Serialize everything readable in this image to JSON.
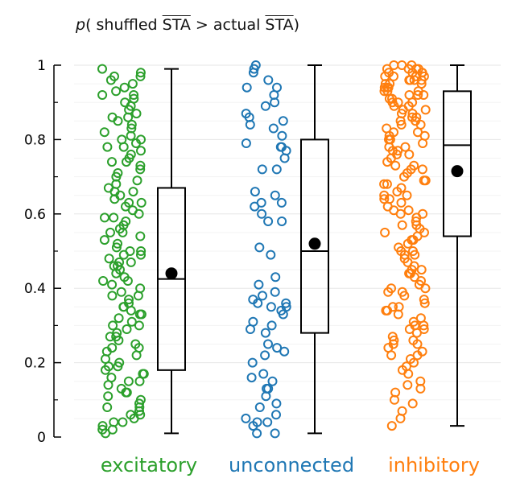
{
  "chart_data": {
    "type": "scatter",
    "title": {
      "p": "p",
      "open": "( shuffled ",
      "sta1": "STA",
      "gt": " > ",
      "mid": " actual ",
      "sta2": "STA",
      "close": ")"
    },
    "ylim": [
      0,
      1
    ],
    "yticks": [
      0,
      0.2,
      0.4,
      0.6,
      0.8,
      1
    ],
    "ytick_labels": [
      "0",
      "0.2",
      "0.4",
      "0.6",
      "0.8",
      "1"
    ],
    "grid": true,
    "categories": [
      {
        "name": "excitatory",
        "color": "#2ca02c",
        "box": {
          "min": 0.01,
          "q1": 0.18,
          "median": 0.425,
          "q3": 0.67,
          "max": 0.99,
          "mean": 0.44
        },
        "points": [
          0.99,
          0.98,
          0.97,
          0.96,
          0.95,
          0.94,
          0.93,
          0.92,
          0.91,
          0.9,
          0.89,
          0.88,
          0.87,
          0.86,
          0.85,
          0.84,
          0.83,
          0.82,
          0.81,
          0.8,
          0.8,
          0.79,
          0.78,
          0.78,
          0.77,
          0.76,
          0.75,
          0.74,
          0.73,
          0.72,
          0.71,
          0.7,
          0.69,
          0.68,
          0.67,
          0.66,
          0.65,
          0.64,
          0.63,
          0.62,
          0.61,
          0.6,
          0.59,
          0.59,
          0.58,
          0.57,
          0.56,
          0.55,
          0.54,
          0.53,
          0.52,
          0.51,
          0.5,
          0.5,
          0.49,
          0.48,
          0.47,
          0.46,
          0.46,
          0.45,
          0.44,
          0.43,
          0.42,
          0.41,
          0.4,
          0.39,
          0.38,
          0.37,
          0.36,
          0.35,
          0.35,
          0.34,
          0.33,
          0.32,
          0.31,
          0.3,
          0.29,
          0.28,
          0.27,
          0.26,
          0.25,
          0.24,
          0.23,
          0.22,
          0.21,
          0.2,
          0.19,
          0.18,
          0.17,
          0.16,
          0.15,
          0.14,
          0.13,
          0.12,
          0.11,
          0.1,
          0.09,
          0.08,
          0.07,
          0.06,
          0.05,
          0.04,
          0.03,
          0.02,
          0.01,
          0.92,
          0.86,
          0.74,
          0.66,
          0.55,
          0.47,
          0.38,
          0.3,
          0.24,
          0.19,
          0.15,
          0.08,
          0.04,
          0.02,
          0.97,
          0.63,
          0.49,
          0.42,
          0.33,
          0.27,
          0.17,
          0.12,
          0.06
        ]
      },
      {
        "name": "unconnected",
        "color": "#1f77b4",
        "box": {
          "min": 0.01,
          "q1": 0.28,
          "median": 0.5,
          "q3": 0.8,
          "max": 1.0,
          "mean": 0.52
        },
        "points": [
          1.0,
          0.99,
          0.98,
          0.96,
          0.94,
          0.94,
          0.92,
          0.9,
          0.89,
          0.87,
          0.86,
          0.85,
          0.84,
          0.83,
          0.81,
          0.79,
          0.78,
          0.78,
          0.77,
          0.75,
          0.72,
          0.72,
          0.66,
          0.65,
          0.63,
          0.63,
          0.62,
          0.6,
          0.58,
          0.58,
          0.51,
          0.49,
          0.43,
          0.41,
          0.39,
          0.38,
          0.37,
          0.36,
          0.36,
          0.35,
          0.35,
          0.34,
          0.33,
          0.31,
          0.3,
          0.29,
          0.28,
          0.25,
          0.24,
          0.23,
          0.22,
          0.2,
          0.17,
          0.16,
          0.15,
          0.13,
          0.13,
          0.11,
          0.09,
          0.08,
          0.06,
          0.05,
          0.04,
          0.04,
          0.03,
          0.01,
          0.01
        ]
      },
      {
        "name": "inhibitory",
        "color": "#ff7f0e",
        "box": {
          "min": 0.03,
          "q1": 0.54,
          "median": 0.785,
          "q3": 0.93,
          "max": 1.0,
          "mean": 0.715
        },
        "points": [
          1.0,
          1.0,
          1.0,
          0.99,
          0.99,
          0.99,
          0.98,
          0.98,
          0.98,
          0.97,
          0.97,
          0.97,
          0.96,
          0.96,
          0.96,
          0.95,
          0.95,
          0.94,
          0.94,
          0.93,
          0.93,
          0.92,
          0.92,
          0.91,
          0.91,
          0.9,
          0.9,
          0.89,
          0.88,
          0.88,
          0.87,
          0.86,
          0.86,
          0.85,
          0.84,
          0.83,
          0.82,
          0.82,
          0.81,
          0.8,
          0.79,
          0.78,
          0.78,
          0.77,
          0.76,
          0.75,
          0.74,
          0.73,
          0.72,
          0.71,
          0.7,
          0.69,
          0.68,
          0.67,
          0.66,
          0.65,
          0.64,
          0.63,
          0.62,
          0.61,
          0.6,
          0.59,
          0.58,
          0.57,
          0.56,
          0.55,
          0.54,
          0.53,
          0.52,
          0.51,
          0.5,
          0.49,
          0.48,
          0.47,
          0.46,
          0.45,
          0.44,
          0.43,
          0.42,
          0.41,
          0.4,
          0.39,
          0.38,
          0.37,
          0.36,
          0.35,
          0.34,
          0.33,
          0.32,
          0.31,
          0.3,
          0.29,
          0.28,
          0.27,
          0.26,
          0.25,
          0.24,
          0.23,
          0.22,
          0.21,
          0.2,
          0.19,
          0.18,
          0.15,
          0.14,
          0.13,
          0.12,
          0.09,
          0.07,
          0.05,
          0.03,
          0.99,
          0.97,
          0.95,
          0.93,
          0.9,
          0.87,
          0.84,
          0.8,
          0.76,
          0.72,
          0.68,
          0.64,
          0.6,
          0.55,
          0.5,
          0.45,
          0.4,
          0.35,
          0.3,
          0.26,
          0.22,
          0.98,
          0.96,
          0.94,
          0.92,
          0.89,
          0.85,
          0.81,
          0.77,
          0.73,
          0.69,
          0.65,
          0.61,
          0.57,
          0.53,
          0.49,
          0.44,
          0.39,
          0.34,
          0.29,
          0.25,
          0.17,
          0.1
        ]
      }
    ]
  }
}
